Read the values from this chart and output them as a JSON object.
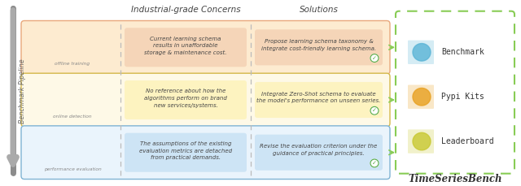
{
  "title": "TimeSeriesBench",
  "section_header_concerns": "Industrial-grade Concerns",
  "section_header_solutions": "Solutions",
  "left_label": "Benchmark Pipeline",
  "rows": [
    {
      "label": "offline training",
      "concern": "Current learning schema\nresults in unaffordable\nstorage & maintenance cost.",
      "solution": "Propose learning schema taxonomy &\nintegrate cost-friendly learning schema.",
      "concern_bg": "#f5d5b8",
      "solution_bg": "#f5d5b8",
      "row_bg": "#fdebd0",
      "row_border": "#e8a87c"
    },
    {
      "label": "online detection",
      "concern": "No reference about how the\nalgorithms perform on brand\nnew services/systems.",
      "solution": "Integrate Zero-Shot schema to evaluate\nthe model's performance on unseen series.",
      "concern_bg": "#fdf3c0",
      "solution_bg": "#fdf3c0",
      "row_bg": "#fef9e7",
      "row_border": "#d4b84a"
    },
    {
      "label": "performance evaluation",
      "concern": "The assumptions of the existing\nevaluation metrics are detached\nfrom practical demands.",
      "solution": "Revise the evaluation criterion under the\nguidance of practical principles.",
      "concern_bg": "#cde4f5",
      "solution_bg": "#cde4f5",
      "row_bg": "#eaf4fc",
      "row_border": "#7fb3d3"
    }
  ],
  "right_items": [
    "Benchmark",
    "Pypi Kits",
    "Leaderboard"
  ],
  "right_item_colors": [
    "#5ab4d6",
    "#e8a020",
    "#c8c830"
  ],
  "bg_color": "#ffffff",
  "dashed_border_color": "#88cc55",
  "arrow_color": "#88cc55",
  "check_color": "#55aa44",
  "pipeline_arrow_color": "#aaaaaa",
  "header_color": "#444444",
  "concern_text_color": "#444444",
  "solution_text_color": "#444444"
}
